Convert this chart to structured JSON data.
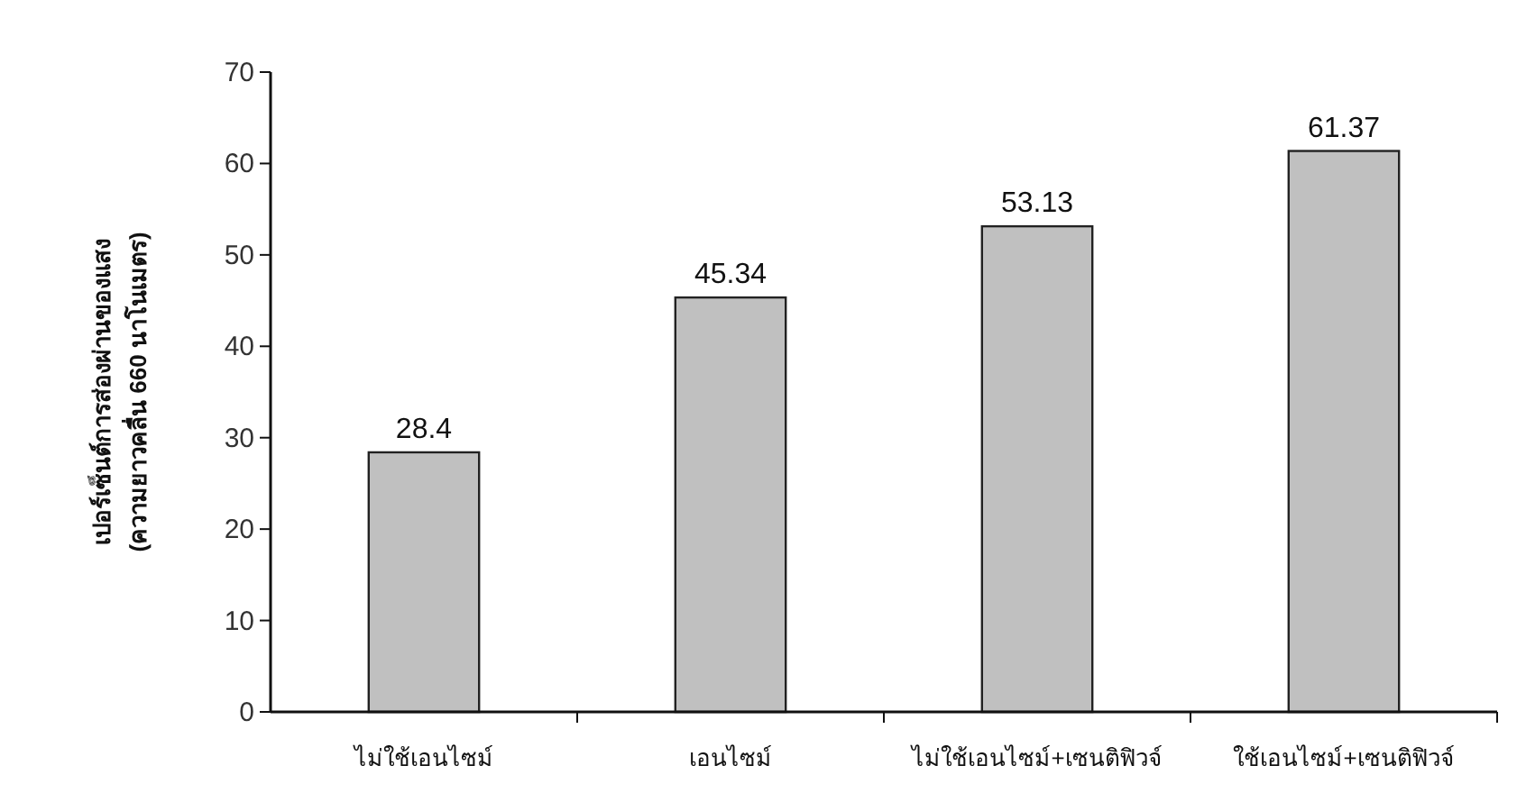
{
  "chart_data": {
    "type": "bar",
    "ylabel": "เปอร์เซ็นต์การส่องผ่านของแสง\n(ความยาวคลื่น 660 นาโนเมตร)",
    "categories": [
      "ไม่ใช้เอนไซม์",
      "เอนไซม์",
      "ไม่ใช้เอนไซม์+เซนติฟิวจ์",
      "ใช้เอนไซม์+เซนติฟิวจ์"
    ],
    "values": [
      28.4,
      45.34,
      53.13,
      61.37
    ],
    "color": "#c0c0c0",
    "ylim": [
      0,
      70
    ],
    "yticks": [
      0,
      10,
      20,
      30,
      40,
      50,
      60,
      70
    ],
    "data_labels": true,
    "grid": false
  }
}
